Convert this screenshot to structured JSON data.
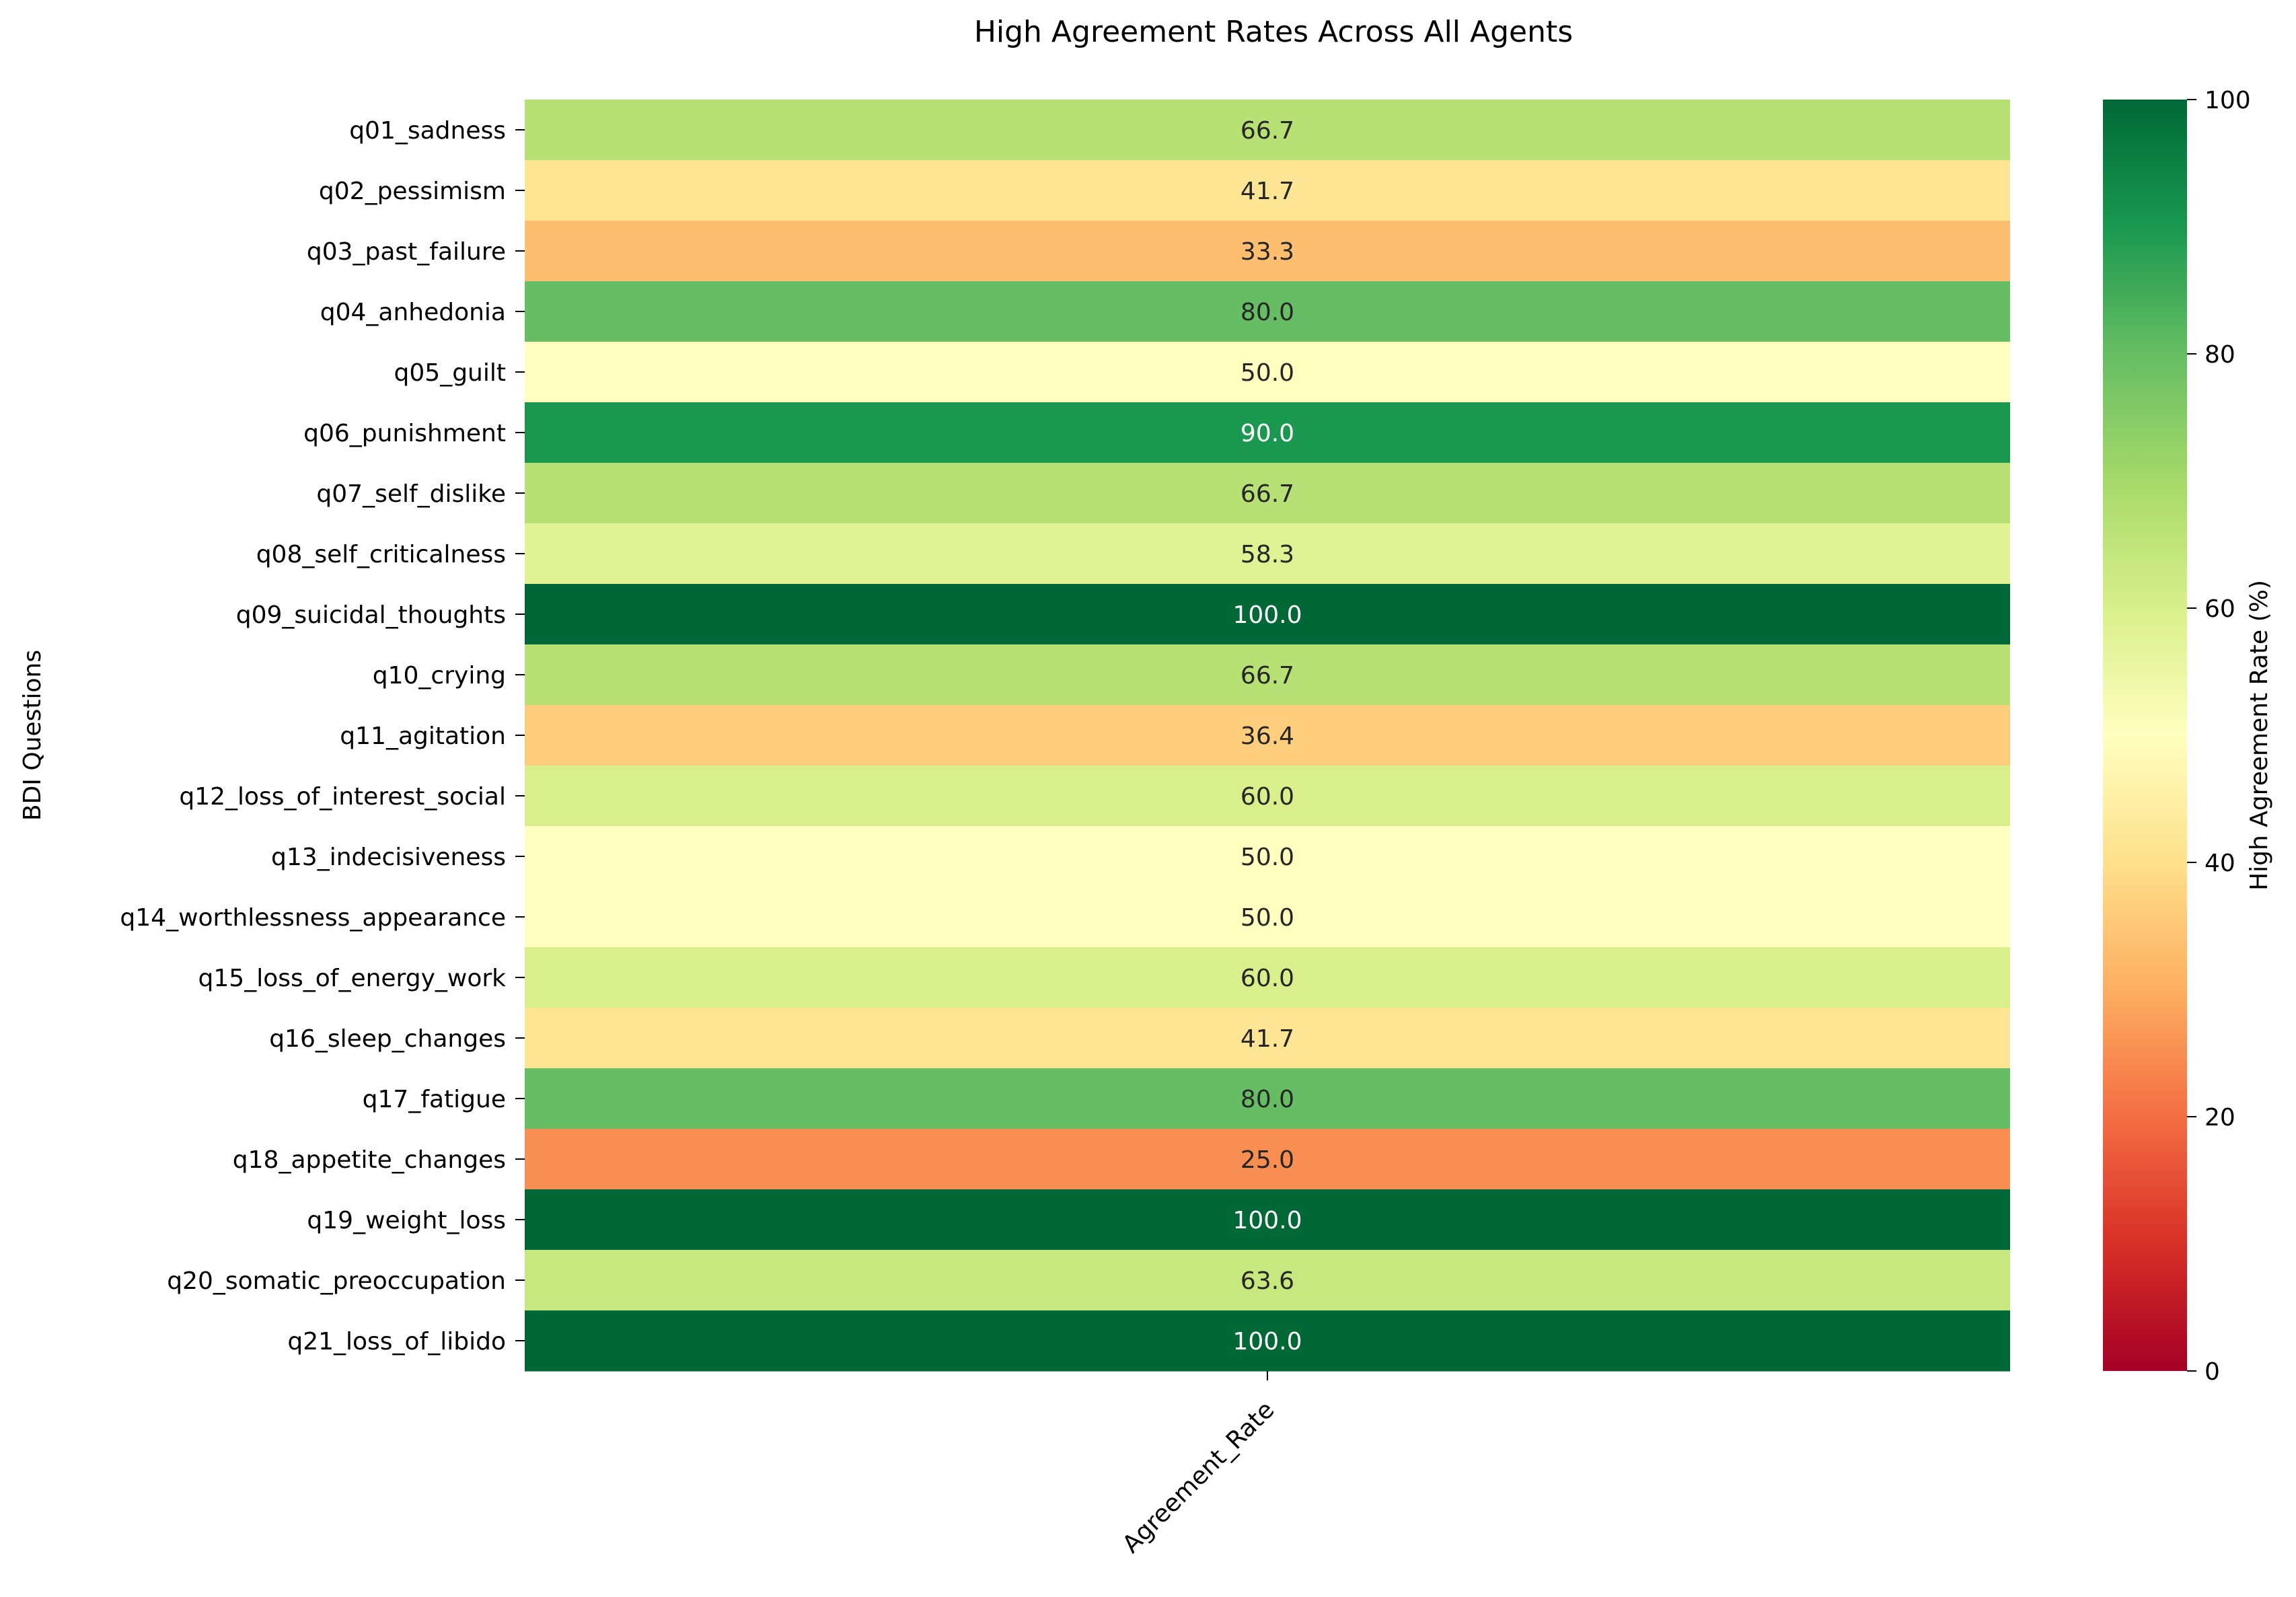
{
  "chart_data": {
    "type": "heatmap",
    "title": "High Agreement Rates Across All Agents",
    "xlabel": "",
    "ylabel": "BDI Questions",
    "columns": [
      "Agreement_Rate"
    ],
    "rows": [
      "q01_sadness",
      "q02_pessimism",
      "q03_past_failure",
      "q04_anhedonia",
      "q05_guilt",
      "q06_punishment",
      "q07_self_dislike",
      "q08_self_criticalness",
      "q09_suicidal_thoughts",
      "q10_crying",
      "q11_agitation",
      "q12_loss_of_interest_social",
      "q13_indecisiveness",
      "q14_worthlessness_appearance",
      "q15_loss_of_energy_work",
      "q16_sleep_changes",
      "q17_fatigue",
      "q18_appetite_changes",
      "q19_weight_loss",
      "q20_somatic_preoccupation",
      "q21_loss_of_libido"
    ],
    "values": [
      66.7,
      41.7,
      33.3,
      80.0,
      50.0,
      90.0,
      66.7,
      58.3,
      100.0,
      66.7,
      36.4,
      60.0,
      50.0,
      50.0,
      60.0,
      41.7,
      80.0,
      25.0,
      100.0,
      63.6,
      100.0
    ],
    "value_format": "0.1f",
    "colormap": "RdYlGn",
    "colorbar": {
      "label": "High Agreement Rate (%)",
      "range": [
        0,
        100
      ],
      "ticks": [
        0,
        20,
        40,
        60,
        80,
        100
      ]
    }
  },
  "colors": {
    "ramp": [
      "#a50026",
      "#d73027",
      "#f46d43",
      "#fdae61",
      "#fee08b",
      "#ffffbf",
      "#d9ef8b",
      "#a6d96a",
      "#66bd63",
      "#1a9850",
      "#006837"
    ],
    "dark_text": "#262626",
    "light_text": "#ffffff"
  }
}
